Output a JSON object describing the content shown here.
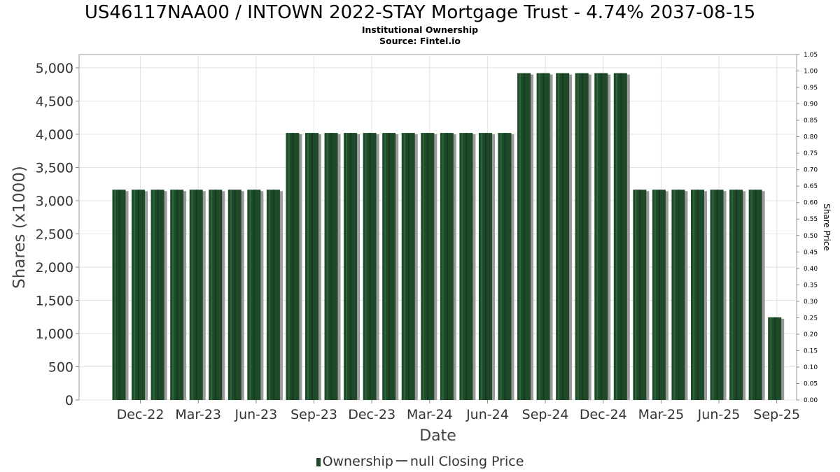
{
  "chart_data": {
    "type": "bar",
    "title": "US46117NAA00 / INTOWN 2022-STAY Mortgage Trust - 4.74% 2037-08-15",
    "subtitle": "Institutional Ownership",
    "source": "Source: Fintel.io",
    "xlabel": "Date",
    "ylabel": "Shares (x1000)",
    "y2label": "Share Price",
    "ylim": [
      0,
      5200
    ],
    "y2lim": [
      0,
      1.05
    ],
    "yticks": [
      0,
      500,
      1000,
      1500,
      2000,
      2500,
      3000,
      3500,
      4000,
      4500,
      5000
    ],
    "ytick_labels": [
      "0",
      "500",
      "1,000",
      "1,500",
      "2,000",
      "2,500",
      "3,000",
      "3,500",
      "4,000",
      "4,500",
      "5,000"
    ],
    "y2ticks": [
      "0.00",
      "0.05",
      "0.10",
      "0.15",
      "0.20",
      "0.25",
      "0.30",
      "0.35",
      "0.40",
      "0.45",
      "0.50",
      "0.55",
      "0.60",
      "0.65",
      "0.70",
      "0.75",
      "0.80",
      "0.85",
      "0.90",
      "0.95",
      "1.00",
      "1.05"
    ],
    "xtick_labels": [
      "Dec-22",
      "Mar-23",
      "Jun-23",
      "Sep-23",
      "Dec-23",
      "Mar-24",
      "Jun-24",
      "Sep-24",
      "Dec-24",
      "Mar-25",
      "Jun-25",
      "Sep-25"
    ],
    "grid": true,
    "legend_position": "bottom",
    "series": [
      {
        "name": "Ownership",
        "color": "#1e4a2a",
        "values": [
          3165,
          3165,
          3165,
          3165,
          3165,
          3165,
          3165,
          3165,
          3165,
          4020,
          4020,
          4020,
          4020,
          4020,
          4020,
          4020,
          4020,
          4020,
          4020,
          4020,
          4020,
          4920,
          4920,
          4920,
          4920,
          4920,
          4920,
          3165,
          3165,
          3165,
          3165,
          3165,
          3165,
          3165,
          1245
        ]
      }
    ],
    "legend": [
      "Ownership",
      "null Closing Price"
    ]
  }
}
